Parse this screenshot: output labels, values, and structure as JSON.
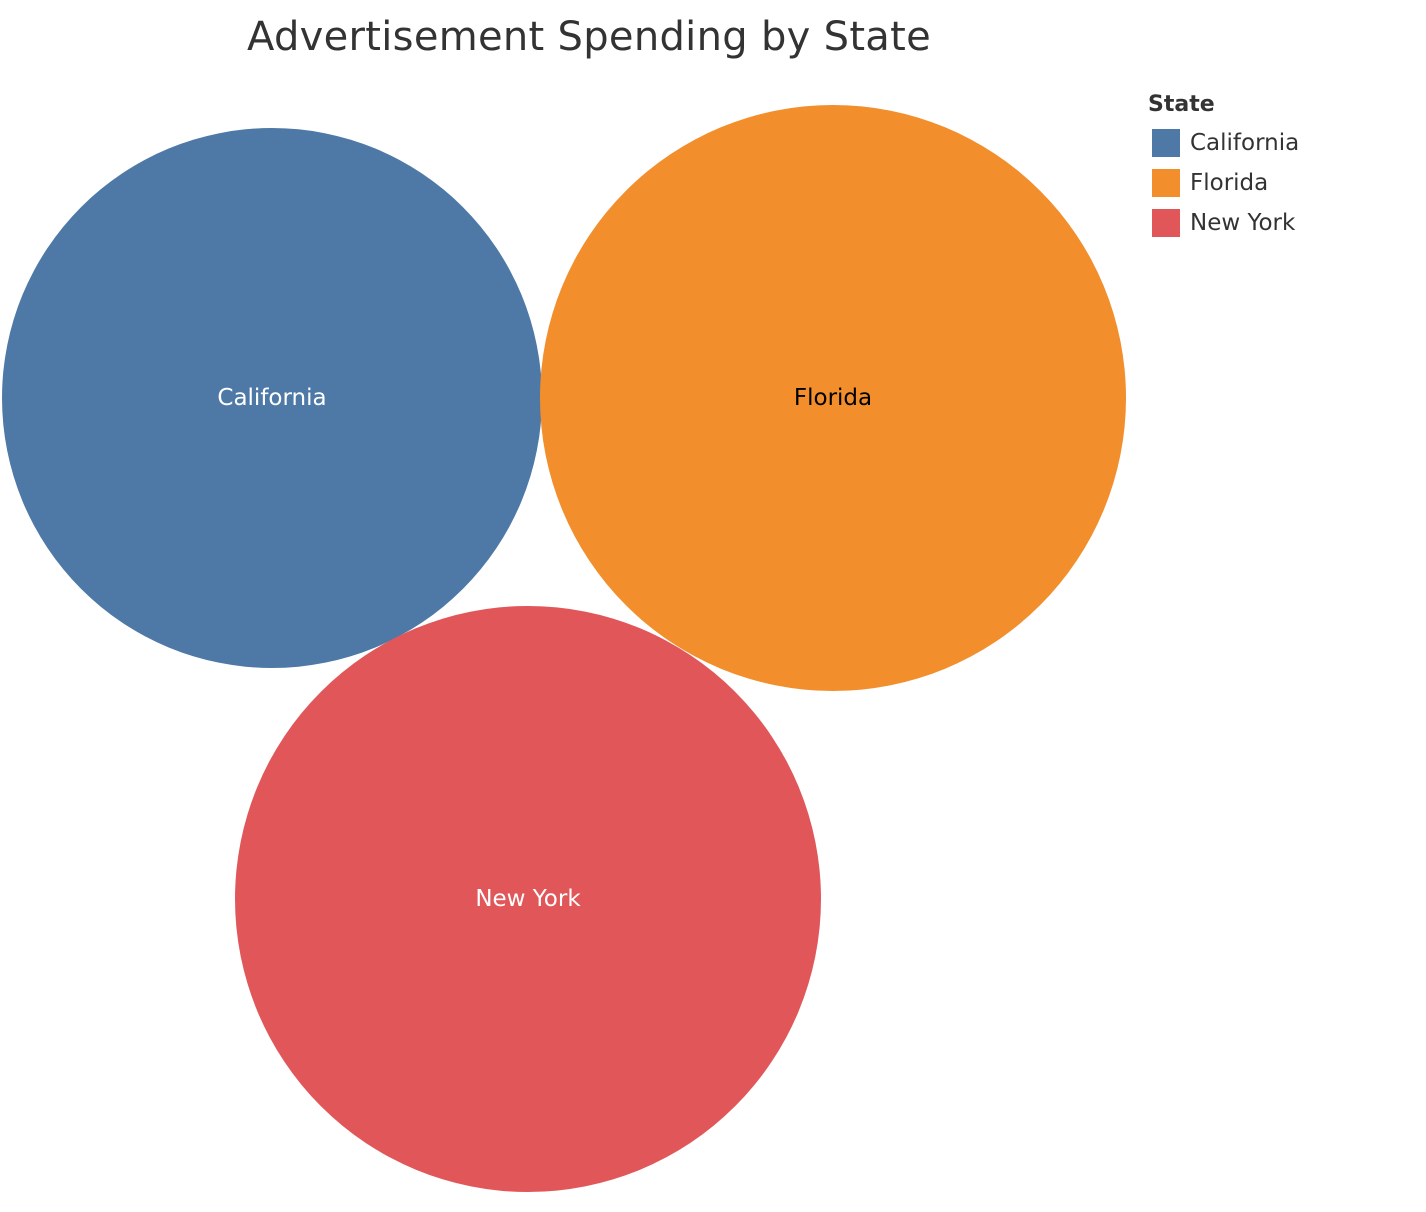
{
  "chart_data": {
    "type": "bubble",
    "title": "Advertisement Spending by State",
    "legend": {
      "title": "State",
      "placement": "top-right"
    },
    "categories": [
      "California",
      "Florida",
      "New York"
    ],
    "series": [
      {
        "name": "California",
        "label": "California",
        "color": "#4E79A7",
        "label_color": "#ffffff"
      },
      {
        "name": "Florida",
        "label": "Florida",
        "color": "#F28E2B",
        "label_color": "#000000"
      },
      {
        "name": "New York",
        "label": "New York",
        "color": "#E15759",
        "label_color": "#ffffff"
      }
    ],
    "size_encoding": "relative bubble area; Florida and New York similar, California smaller"
  }
}
